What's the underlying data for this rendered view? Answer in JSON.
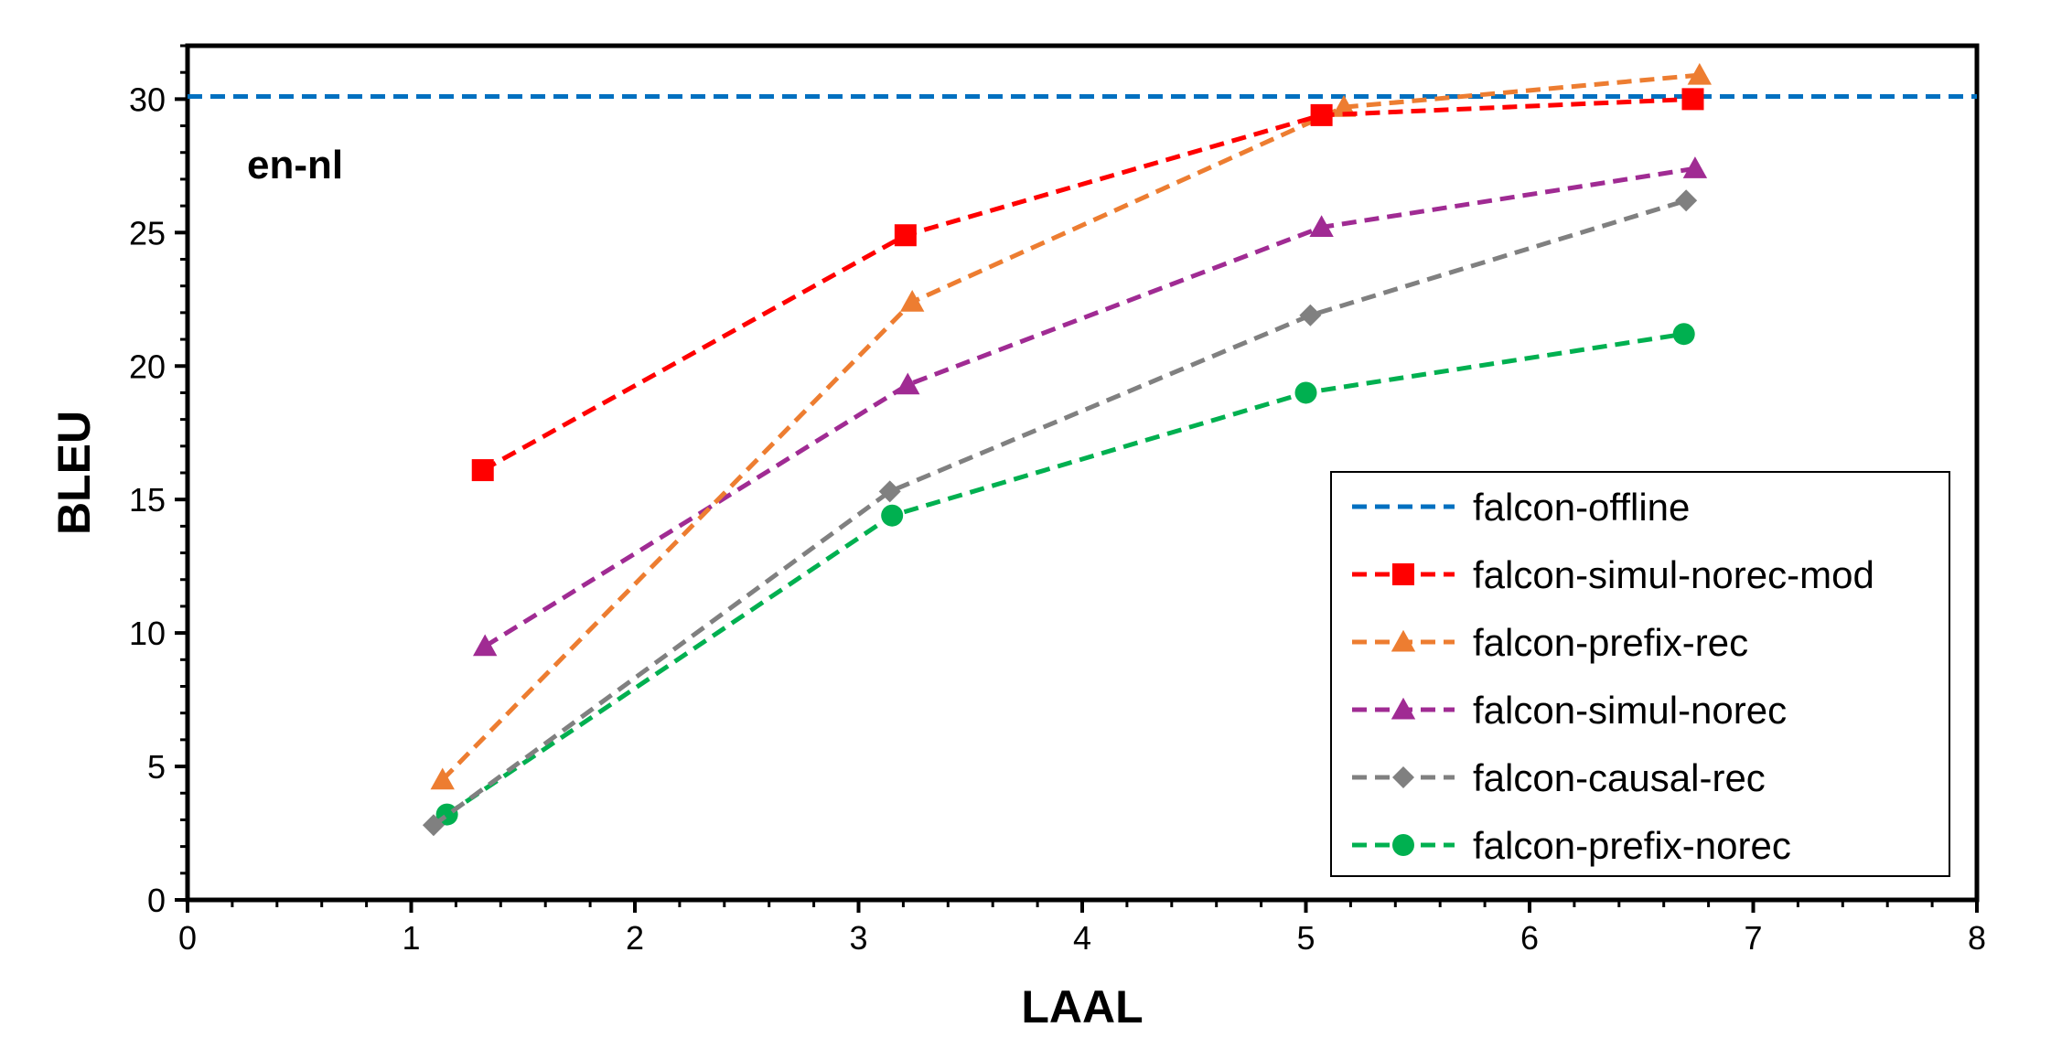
{
  "chart_data": {
    "type": "line",
    "xlabel": "LAAL",
    "ylabel": "BLEU",
    "annotation": "en-nl",
    "xlim": [
      0,
      8
    ],
    "ylim": [
      0,
      32
    ],
    "x_ticks": [
      0,
      1,
      2,
      3,
      4,
      5,
      6,
      7,
      8
    ],
    "y_ticks": [
      0,
      5,
      10,
      15,
      20,
      25,
      30
    ],
    "x_tick_labels": [
      "0",
      "1",
      "2",
      "3",
      "4",
      "5",
      "6",
      "7",
      "8"
    ],
    "y_tick_labels": [
      "0",
      "5",
      "10",
      "15",
      "20",
      "25",
      "30"
    ],
    "legend_position": "bottom-right",
    "grid": false,
    "series": [
      {
        "name": "falcon-offline",
        "color": "#0070C0",
        "marker": "none",
        "kind": "hline",
        "y": 30.1
      },
      {
        "name": "falcon-simul-norec-mod",
        "color": "#FF0000",
        "marker": "square",
        "x": [
          1.32,
          3.21,
          5.07,
          6.73
        ],
        "y": [
          16.1,
          24.9,
          29.4,
          30.0
        ]
      },
      {
        "name": "falcon-prefix-rec",
        "color": "#ED7D31",
        "marker": "triangle",
        "x": [
          1.14,
          3.24,
          5.17,
          6.76
        ],
        "y": [
          4.5,
          22.4,
          29.7,
          30.9
        ]
      },
      {
        "name": "falcon-simul-norec",
        "color": "#A02B93",
        "marker": "triangle",
        "x": [
          1.33,
          3.22,
          5.07,
          6.74
        ],
        "y": [
          9.5,
          19.3,
          25.2,
          27.4
        ]
      },
      {
        "name": "falcon-causal-rec",
        "color": "#808080",
        "marker": "diamond",
        "x": [
          1.1,
          3.14,
          5.02,
          6.7
        ],
        "y": [
          2.8,
          15.3,
          21.9,
          26.2
        ]
      },
      {
        "name": "falcon-prefix-norec",
        "color": "#00B050",
        "marker": "circle",
        "x": [
          1.16,
          3.15,
          5.0,
          6.69
        ],
        "y": [
          3.2,
          14.4,
          19.0,
          21.2
        ]
      }
    ]
  }
}
